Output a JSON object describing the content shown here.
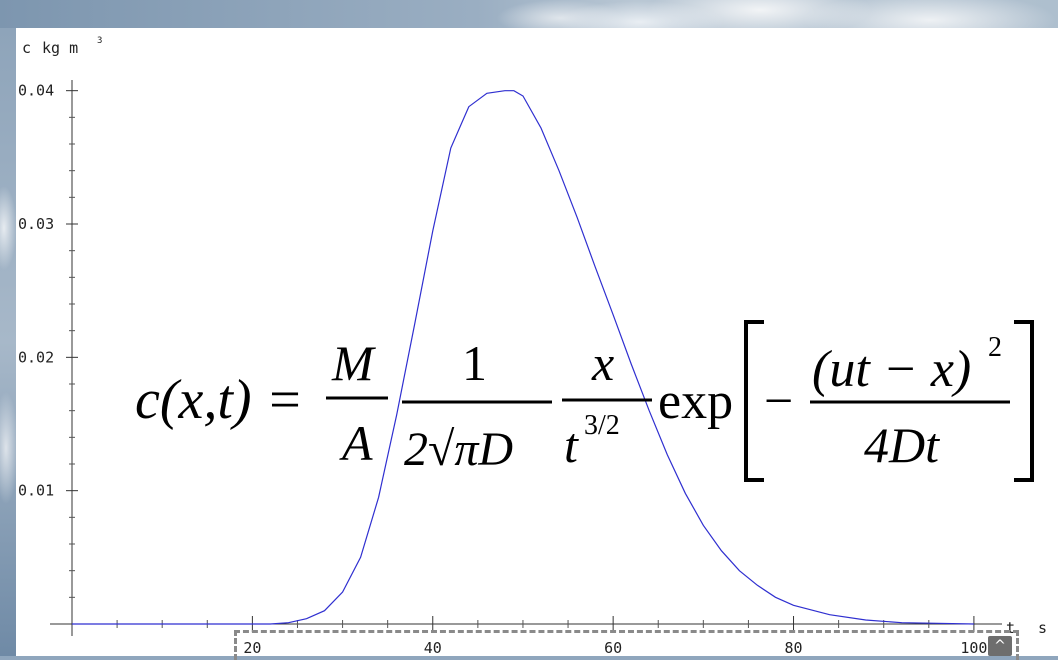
{
  "chart_data": {
    "type": "line",
    "ylabel_parts": [
      "c",
      "kg m",
      "3"
    ],
    "xlabel_parts": [
      "t",
      "s"
    ],
    "xlim": [
      0,
      105
    ],
    "ylim": [
      0,
      0.042
    ],
    "x_ticks": [
      20,
      40,
      60,
      80,
      100
    ],
    "x_tick_labels": [
      "20",
      "40",
      "60",
      "80",
      "100"
    ],
    "y_ticks": [
      0.01,
      0.02,
      0.03,
      0.04
    ],
    "y_tick_labels": [
      "0.01",
      "0.02",
      "0.03",
      "0.04"
    ],
    "grid": false,
    "series": [
      {
        "color": "#2f2fd0",
        "x": [
          0,
          22,
          24,
          26,
          28,
          30,
          32,
          34,
          36,
          38,
          40,
          42,
          44,
          46,
          48,
          49,
          50,
          52,
          54,
          56,
          58,
          60,
          62,
          64,
          66,
          68,
          70,
          72,
          74,
          76,
          78,
          80,
          84,
          88,
          92,
          96,
          100
        ],
        "y": [
          0,
          0,
          0.0001,
          0.0004,
          0.001,
          0.0024,
          0.005,
          0.0095,
          0.0157,
          0.0225,
          0.0295,
          0.0357,
          0.0388,
          0.0398,
          0.04,
          0.04,
          0.0396,
          0.0372,
          0.034,
          0.0305,
          0.0268,
          0.0232,
          0.0195,
          0.016,
          0.0127,
          0.0098,
          0.0074,
          0.0055,
          0.004,
          0.0029,
          0.002,
          0.0014,
          0.0007,
          0.0003,
          0.0001,
          5e-05,
          0
        ]
      }
    ]
  },
  "equation": {
    "lhs": "c(x,t) =",
    "frac1_num": "M",
    "frac1_den": "A",
    "frac2_num": "1",
    "frac2_den": "2√πD",
    "frac3_num": "x",
    "frac3_den": "t",
    "frac3_den_exp": "3/2",
    "exp_label": "exp",
    "minus": "−",
    "frac4_num": "(ut − x)",
    "frac4_num_exp": "2",
    "frac4_den": "4Dt"
  },
  "controls": {
    "scroll_up_icon": "^"
  }
}
